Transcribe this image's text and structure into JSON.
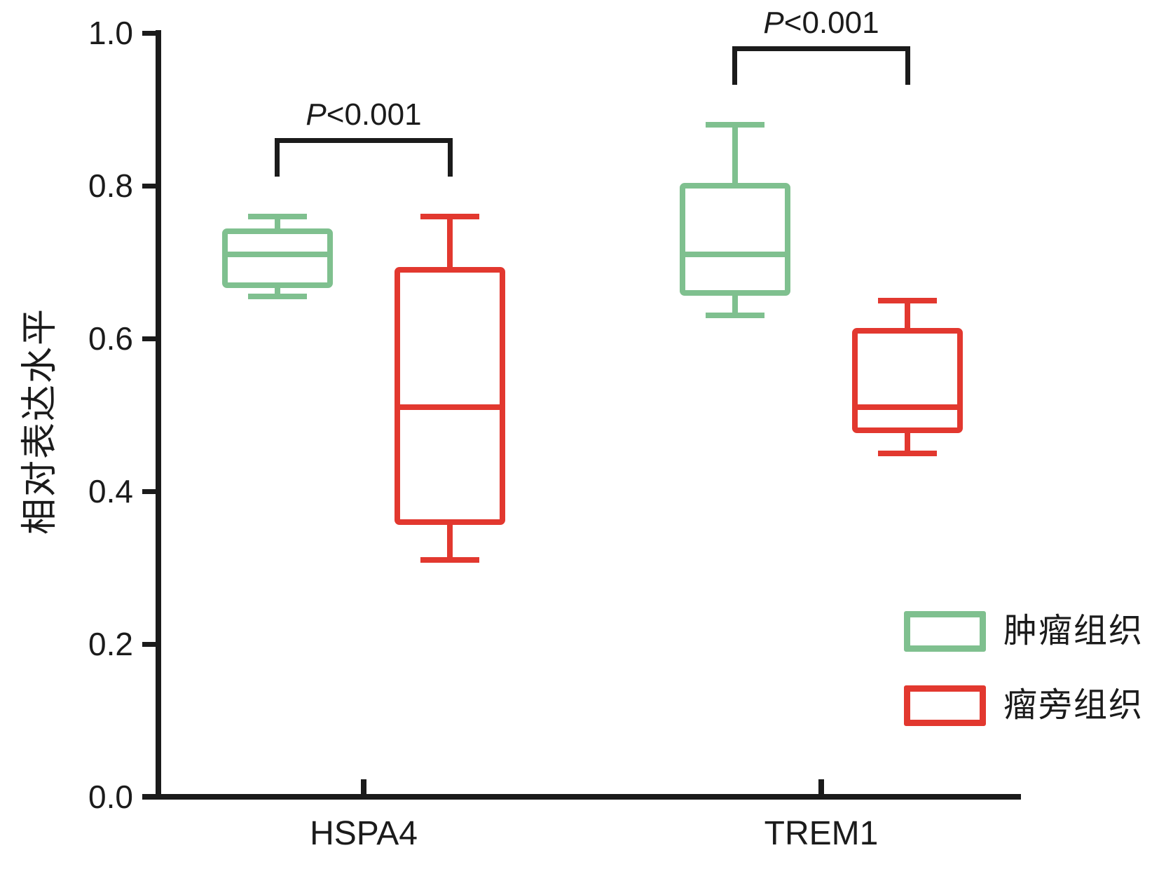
{
  "chart_data": {
    "type": "box",
    "title": "",
    "ylabel": "相对表达水平",
    "xlabel": "",
    "ylim": [
      0.0,
      1.0
    ],
    "yticks": [
      0.0,
      0.2,
      0.4,
      0.6,
      0.8,
      1.0
    ],
    "grid": false,
    "legend_position": "bottom-right",
    "axis_color": "#1b1b1b",
    "categories": [
      "HSPA4",
      "TREM1"
    ],
    "series": [
      {
        "name": "肿瘤组织",
        "color": "#7fc08f",
        "boxes": [
          {
            "category": "HSPA4",
            "min": 0.655,
            "q1": 0.67,
            "median": 0.71,
            "q3": 0.74,
            "max": 0.76
          },
          {
            "category": "TREM1",
            "min": 0.63,
            "q1": 0.66,
            "median": 0.71,
            "q3": 0.8,
            "max": 0.88
          }
        ]
      },
      {
        "name": "瘤旁组织",
        "color": "#e2382f",
        "boxes": [
          {
            "category": "HSPA4",
            "min": 0.31,
            "q1": 0.36,
            "median": 0.51,
            "q3": 0.69,
            "max": 0.76
          },
          {
            "category": "TREM1",
            "min": 0.45,
            "q1": 0.48,
            "median": 0.51,
            "q3": 0.61,
            "max": 0.65
          }
        ]
      }
    ],
    "significance": [
      {
        "category": "HSPA4",
        "label_italic": "P",
        "label_rest": "<0.001"
      },
      {
        "category": "TREM1",
        "label_italic": "P",
        "label_rest": "<0.001"
      }
    ],
    "legend": [
      "肿瘤组织",
      "瘤旁组织"
    ]
  }
}
